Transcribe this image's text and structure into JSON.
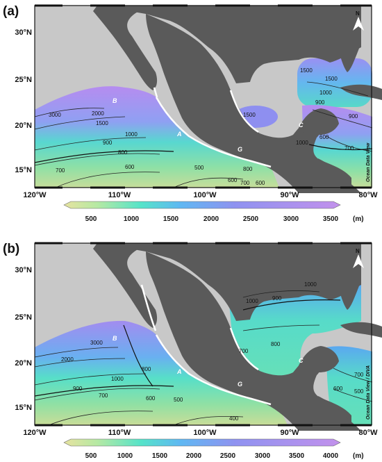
{
  "panels": [
    {
      "label": "(a)",
      "lat_labels": [
        "30°N",
        "25°N",
        "20°N",
        "15°N"
      ],
      "lon_labels": [
        "120°W",
        "110°W",
        "100°W",
        "90°W",
        "80°W"
      ],
      "contours": [
        "3000",
        "2000",
        "1500",
        "1000",
        "900",
        "800",
        "700",
        "600",
        "500",
        "800",
        "600",
        "700",
        "600",
        "1500",
        "1000",
        "900",
        "1500",
        "1500",
        "900",
        "600",
        "700",
        "1000"
      ],
      "sites": [
        "A",
        "B",
        "C",
        "G"
      ],
      "credit": "Ocean Data View",
      "colorbar_ticks": [
        "500",
        "1000",
        "1500",
        "2000",
        "2500",
        "3000",
        "3500"
      ],
      "colorbar_unit": "(m)",
      "compass": "N"
    },
    {
      "label": "(b)",
      "lat_labels": [
        "30°N",
        "25°N",
        "20°N",
        "15°N"
      ],
      "lon_labels": [
        "120°W",
        "110°W",
        "100°W",
        "90°W",
        "80°W"
      ],
      "contours": [
        "3000",
        "2000",
        "1000",
        "900",
        "800",
        "700",
        "600",
        "500",
        "400",
        "1000",
        "900",
        "1000",
        "700",
        "800",
        "700",
        "600",
        "500"
      ],
      "sites": [
        "A",
        "B",
        "C",
        "G"
      ],
      "credit": "Ocean Data View / DIVA",
      "colorbar_ticks": [
        "500",
        "1000",
        "1500",
        "2000",
        "2500",
        "3000",
        "3500",
        "4000"
      ],
      "colorbar_unit": "(m)",
      "compass": "N"
    }
  ],
  "colors": {
    "land": "#5a5a5a",
    "no_data": "#c8c8c8",
    "deep": "#b48cf0",
    "mid": "#6fd6dc",
    "shallow": "#c9df9a",
    "coast_track": "#ffffff"
  }
}
